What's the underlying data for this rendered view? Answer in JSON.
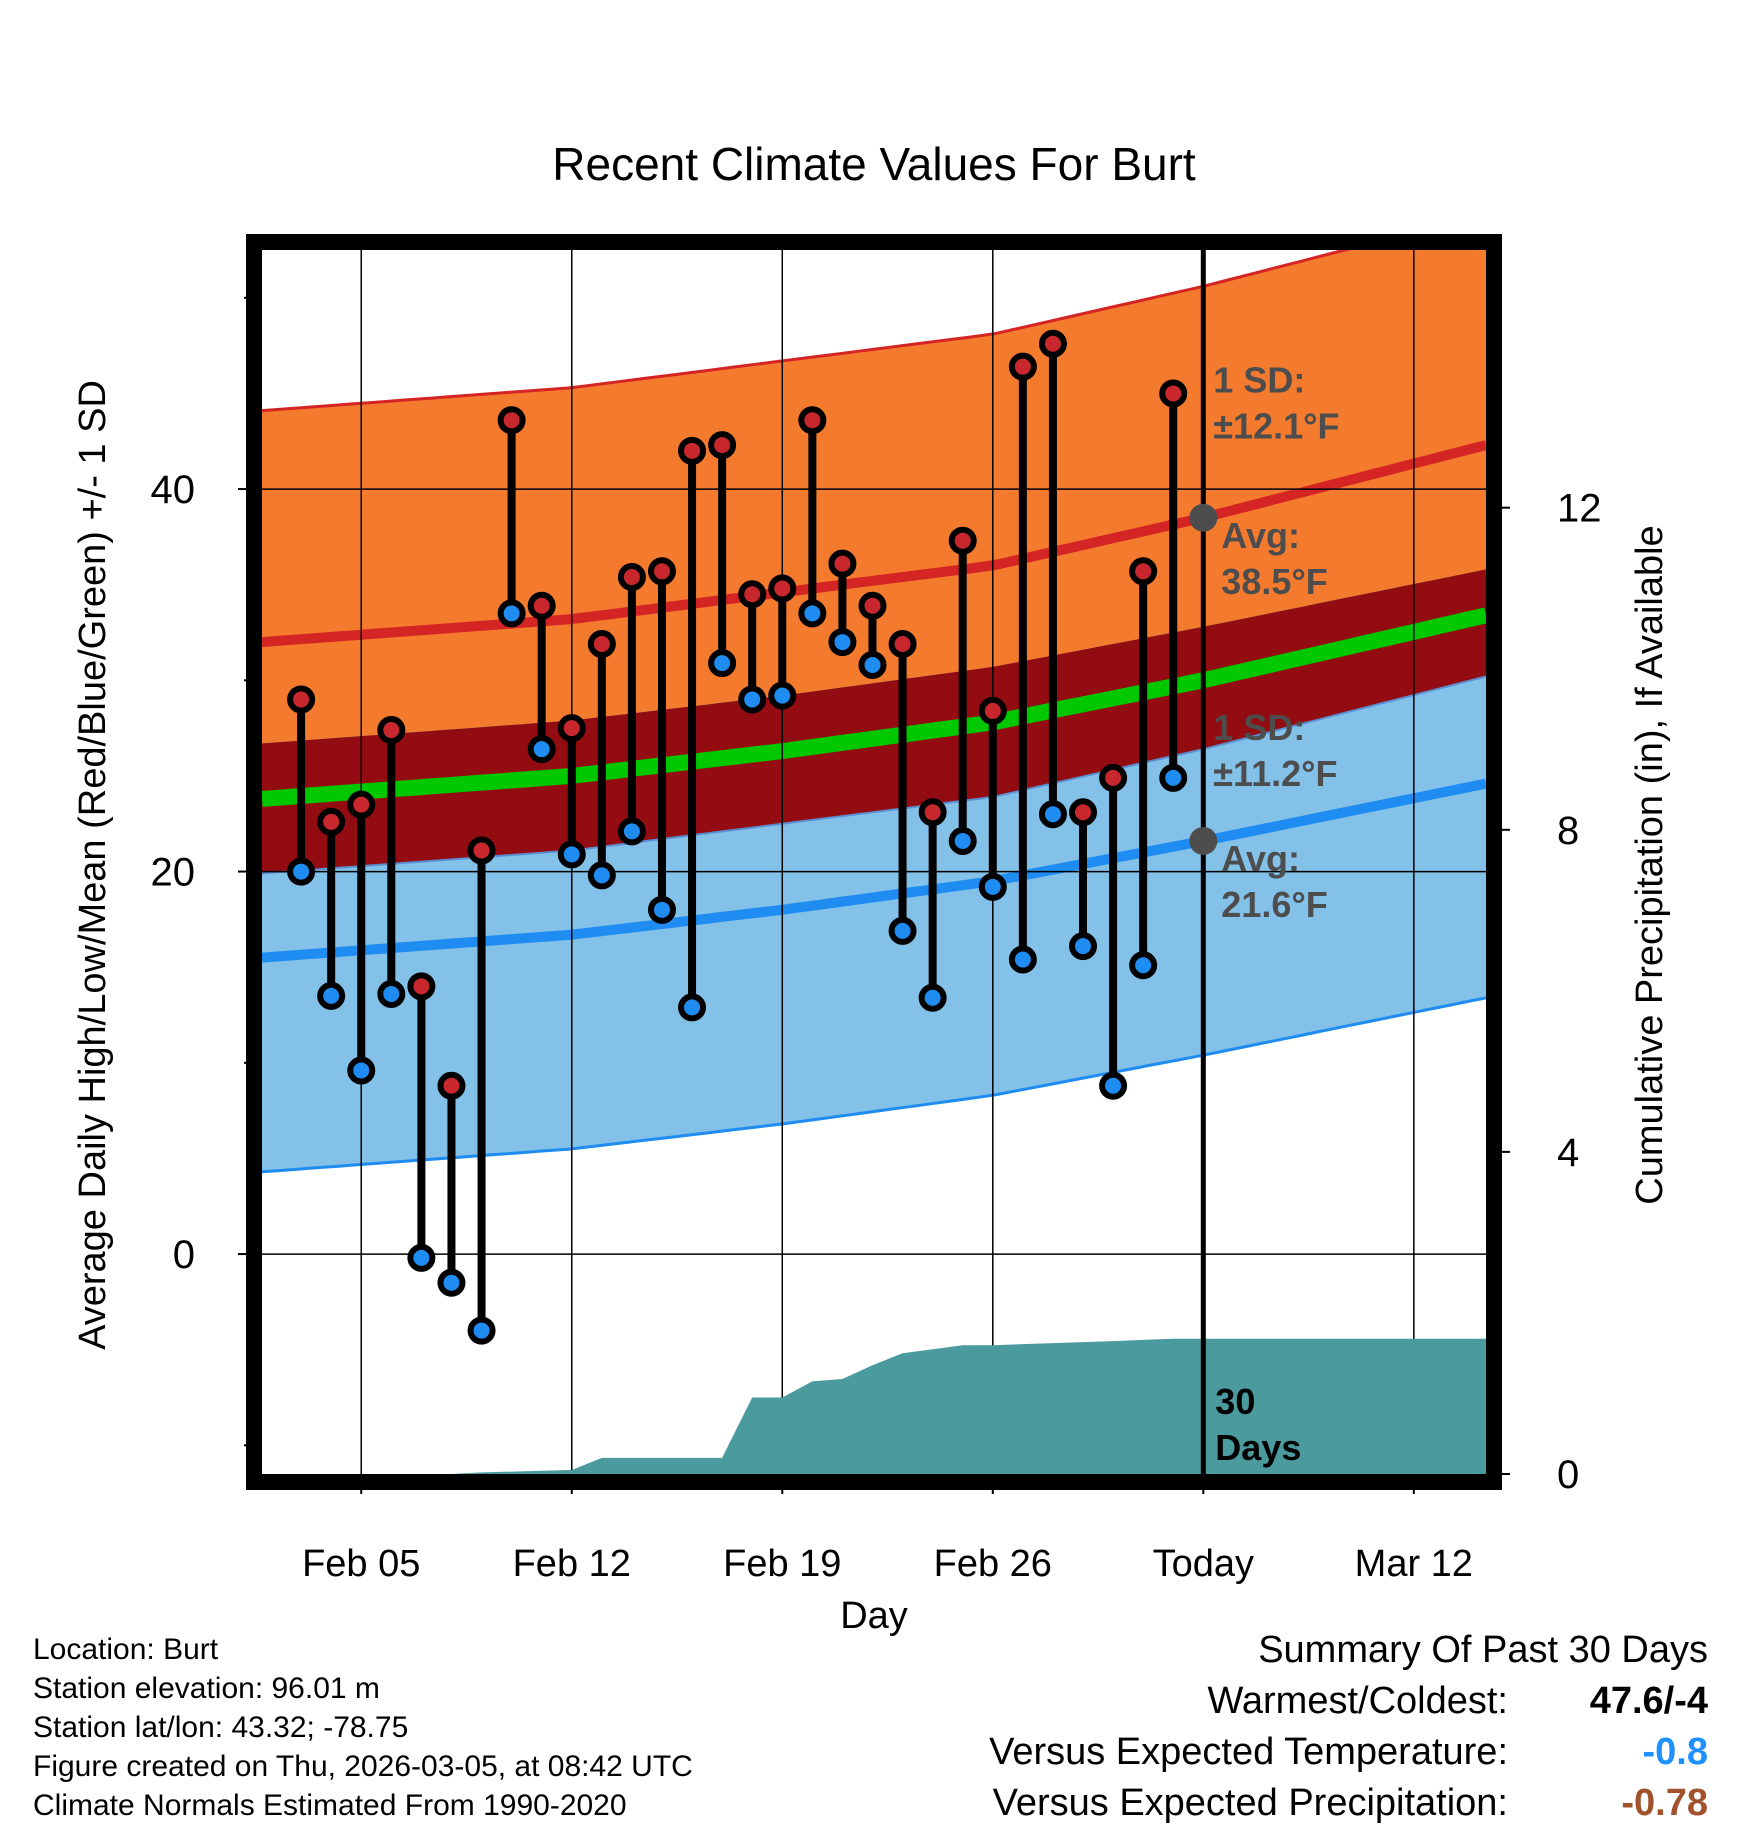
{
  "chart_data": {
    "type": "line",
    "title": "Recent Climate Values For Burt",
    "xlabel": "Day",
    "ylabel": "Average Daily High/Low/Mean (Red/Blue/Green) +/- 1 SD",
    "y2label": "Cumulative Precipitation (in), If Available",
    "x_tick_labels": [
      "Feb 05",
      "Feb 12",
      "Feb 19",
      "Feb 26",
      "Today",
      "Mar 12"
    ],
    "x_range_days": [
      1.7,
      42.4
    ],
    "today_day": 33,
    "ylim": [
      -11.5,
      52.5
    ],
    "y_ticks": [
      0,
      20,
      40
    ],
    "y2lim": [
      0,
      15.2
    ],
    "y2_ticks": [
      0,
      4,
      8,
      12
    ],
    "normals": {
      "high_avg": [
        [
          1.7,
          32.0
        ],
        [
          12,
          33.2
        ],
        [
          19,
          34.6
        ],
        [
          26,
          36.0
        ],
        [
          33,
          38.5
        ],
        [
          42.4,
          42.3
        ]
      ],
      "high_sd": 12.1,
      "low_avg": [
        [
          1.7,
          15.5
        ],
        [
          12,
          16.7
        ],
        [
          19,
          18.0
        ],
        [
          26,
          19.5
        ],
        [
          33,
          21.6
        ],
        [
          42.4,
          24.6
        ]
      ],
      "low_sd": 11.2,
      "mean_avg": [
        [
          1.7,
          23.8
        ],
        [
          12,
          25.0
        ],
        [
          19,
          26.3
        ],
        [
          26,
          27.8
        ],
        [
          33,
          30.0
        ],
        [
          42.4,
          33.4
        ]
      ]
    },
    "annotations": {
      "high_sd_label": [
        "1 SD:",
        "±12.1°F"
      ],
      "high_avg_label": [
        "Avg:",
        "38.5°F"
      ],
      "high_avg_value": 38.5,
      "low_sd_label": [
        "1 SD:",
        "±11.2°F"
      ],
      "low_avg_label": [
        "Avg:",
        "21.6°F"
      ],
      "low_avg_value": 21.6,
      "window_label": [
        "30",
        "Days"
      ]
    },
    "series": [
      {
        "name": "Daily High/Low",
        "days": [
          3,
          4,
          5,
          6,
          7,
          8,
          9,
          10,
          11,
          12,
          13,
          14,
          15,
          16,
          17,
          18,
          19,
          20,
          21,
          22,
          23,
          24,
          25,
          26,
          27,
          28,
          29,
          30,
          31,
          32
        ],
        "highs": [
          29,
          22.6,
          23.5,
          27.4,
          14,
          8.8,
          21.1,
          43.6,
          33.9,
          27.5,
          31.9,
          35.4,
          35.7,
          42,
          42.3,
          34.5,
          34.8,
          43.6,
          36.1,
          33.9,
          31.9,
          23.1,
          37.3,
          28.4,
          46.4,
          47.6,
          23.1,
          24.9,
          35.7,
          45
        ],
        "lows": [
          20,
          13.5,
          9.6,
          13.6,
          -0.2,
          -1.5,
          -4,
          33.5,
          26.4,
          20.9,
          19.8,
          22.1,
          18,
          12.9,
          30.9,
          29,
          29.2,
          33.5,
          32,
          30.8,
          16.9,
          13.4,
          21.6,
          19.2,
          15.4,
          23,
          16.1,
          8.8,
          15.1,
          24.9
        ]
      }
    ],
    "precipitation": {
      "name": "Cumulative Precipitation",
      "days": [
        1.7,
        8,
        9,
        11,
        12,
        13,
        14,
        16,
        17,
        18,
        19,
        20,
        21,
        22,
        23,
        24,
        25,
        26,
        30,
        32,
        33,
        42.4
      ],
      "values": [
        0,
        0,
        0.02,
        0.04,
        0.05,
        0.2,
        0.2,
        0.2,
        0.2,
        0.95,
        0.95,
        1.15,
        1.18,
        1.35,
        1.5,
        1.55,
        1.6,
        1.6,
        1.65,
        1.68,
        1.68,
        1.68
      ]
    }
  },
  "info": {
    "location": "Location: Burt",
    "elevation": "Station elevation: 96.01 m",
    "latlon": "Station lat/lon: 43.32; -78.75",
    "created": "Figure created on Thu, 2026-03-05, at 08:42 UTC",
    "normals": "Climate Normals Estimated From 1990-2020"
  },
  "summary": {
    "title": "Summary Of Past 30 Days",
    "warmest_label": "Warmest/Coldest:",
    "warmest_value": "47.6/-4",
    "temp_label": "Versus Expected Temperature:",
    "temp_value": "-0.8",
    "temp_color": "#1e90ff",
    "precip_label": "Versus Expected Precipitation:",
    "precip_value": "-0.78",
    "precip_color": "#a0522d"
  },
  "colors": {
    "high_band": "#f47a2e",
    "high_line": "#d42424",
    "mean_band": "#920c12",
    "mean_line": "#00c800",
    "low_band": "#83c1e8",
    "low_line": "#1e8cf0",
    "precip": "#4a9a9e",
    "high_dot": "#c8282d",
    "low_dot": "#1e8cf0",
    "annotation": "#4d4d4d"
  }
}
